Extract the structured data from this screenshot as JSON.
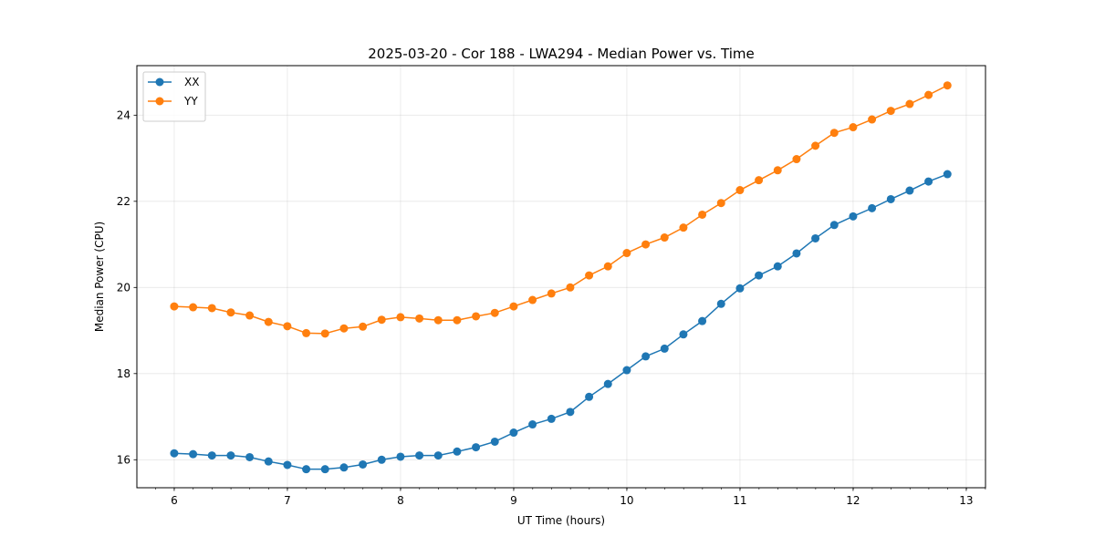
{
  "chart_data": {
    "type": "line",
    "title": "2025-03-20 - Cor 188 - LWA294 - Median Power vs. Time",
    "xlabel": "UT Time (hours)",
    "ylabel": "Median Power (CPU)",
    "xlim": [
      5.67,
      13.17
    ],
    "ylim": [
      15.35,
      25.15
    ],
    "xticks": [
      6,
      7,
      8,
      9,
      10,
      11,
      12,
      13
    ],
    "xtick_labels": [
      "6",
      "7",
      "8",
      "9",
      "10",
      "11",
      "12",
      "13"
    ],
    "xminor_step": 0.1667,
    "yticks": [
      16,
      18,
      20,
      22,
      24
    ],
    "ytick_labels": [
      "16",
      "18",
      "20",
      "22",
      "24"
    ],
    "grid": true,
    "legend_position": "top-left",
    "x": [
      6.0,
      6.1667,
      6.3333,
      6.5,
      6.6667,
      6.8333,
      7.0,
      7.1667,
      7.3333,
      7.5,
      7.6667,
      7.8333,
      8.0,
      8.1667,
      8.3333,
      8.5,
      8.6667,
      8.8333,
      9.0,
      9.1667,
      9.3333,
      9.5,
      9.6667,
      9.8333,
      10.0,
      10.1667,
      10.3333,
      10.5,
      10.6667,
      10.8333,
      11.0,
      11.1667,
      11.3333,
      11.5,
      11.6667,
      11.8333,
      12.0,
      12.1667,
      12.3333,
      12.5,
      12.6667,
      12.8333
    ],
    "series": [
      {
        "name": "XX",
        "color": "#1f77b4",
        "values": [
          16.15,
          16.13,
          16.1,
          16.1,
          16.06,
          15.96,
          15.88,
          15.78,
          15.78,
          15.82,
          15.89,
          16.0,
          16.07,
          16.1,
          16.1,
          16.19,
          16.29,
          16.42,
          16.63,
          16.82,
          16.95,
          17.11,
          17.46,
          17.76,
          18.08,
          18.4,
          18.58,
          18.91,
          19.22,
          19.62,
          19.98,
          20.28,
          20.49,
          20.79,
          21.14,
          21.45,
          21.65,
          21.84,
          22.05,
          22.25,
          22.46,
          22.63
        ]
      },
      {
        "name": "YY",
        "color": "#ff7f0e",
        "values": [
          19.56,
          19.54,
          19.52,
          19.42,
          19.35,
          19.2,
          19.1,
          18.94,
          18.93,
          19.05,
          19.09,
          19.25,
          19.31,
          19.28,
          19.24,
          19.24,
          19.33,
          19.41,
          19.56,
          19.71,
          19.86,
          20.0,
          20.28,
          20.49,
          20.8,
          21.0,
          21.16,
          21.39,
          21.69,
          21.96,
          22.26,
          22.49,
          22.72,
          22.98,
          23.29,
          23.59,
          23.72,
          23.9,
          24.1,
          24.26,
          24.47,
          24.69
        ]
      }
    ]
  }
}
